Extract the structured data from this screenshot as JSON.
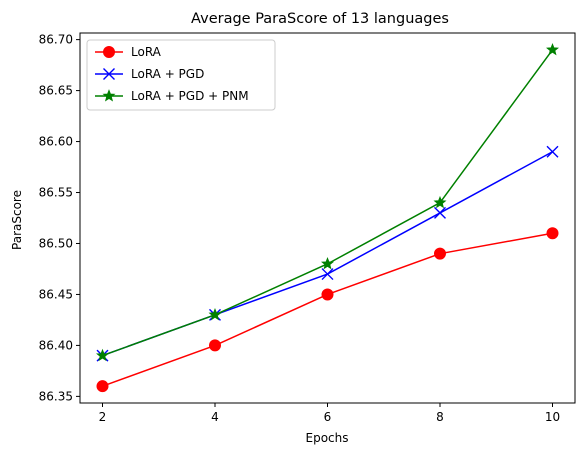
{
  "chart_data": {
    "type": "line",
    "title": "Average ParaScore of 13 languages",
    "xlabel": "Epochs",
    "ylabel": "ParaScore",
    "x": [
      2,
      4,
      6,
      8,
      10
    ],
    "xticks": [
      "2",
      "4",
      "6",
      "8",
      "10"
    ],
    "yticks": [
      "86.35",
      "86.40",
      "86.45",
      "86.50",
      "86.55",
      "86.60",
      "86.65",
      "86.70"
    ],
    "ylim": [
      86.3435,
      86.7065
    ],
    "grid": false,
    "legend_position": "upper-left",
    "series": [
      {
        "name": "LoRA",
        "values": [
          86.36,
          86.4,
          86.45,
          86.49,
          86.51
        ],
        "color": "#ff0000",
        "marker": "circle"
      },
      {
        "name": "LoRA + PGD",
        "values": [
          86.39,
          86.43,
          86.47,
          86.53,
          86.59
        ],
        "color": "#0000ff",
        "marker": "x"
      },
      {
        "name": "LoRA + PGD + PNM",
        "values": [
          86.39,
          86.43,
          86.48,
          86.54,
          86.69
        ],
        "color": "#008000",
        "marker": "star"
      }
    ]
  }
}
